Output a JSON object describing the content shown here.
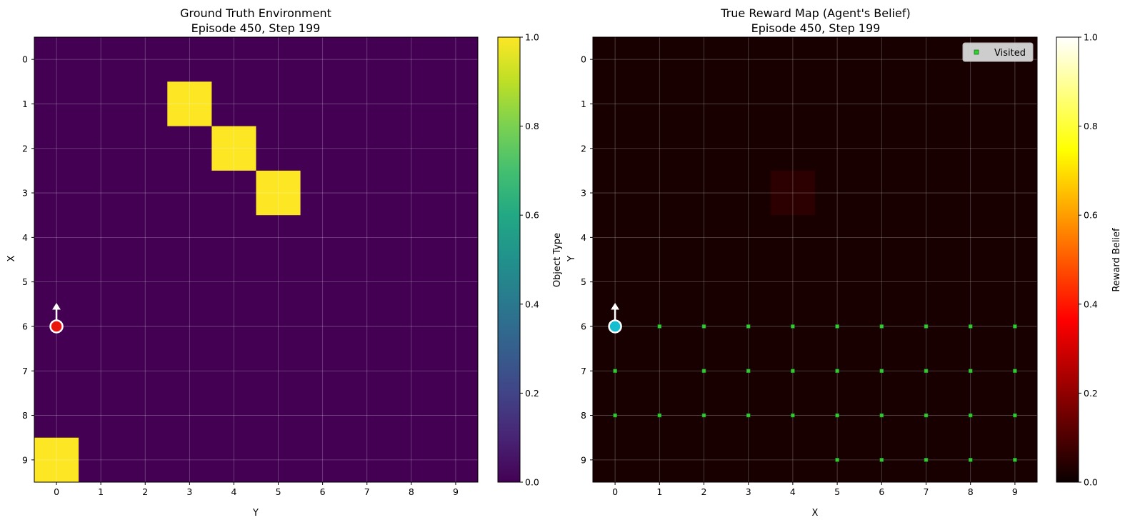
{
  "chart_data": [
    {
      "type": "heatmap",
      "title": "Ground Truth Environment",
      "subtitle": "Episode 450, Step 199",
      "xlabel": "Y",
      "ylabel": "X",
      "x_ticks": [
        "0",
        "1",
        "2",
        "3",
        "4",
        "5",
        "6",
        "7",
        "8",
        "9"
      ],
      "y_ticks": [
        "0",
        "1",
        "2",
        "3",
        "4",
        "5",
        "6",
        "7",
        "8",
        "9"
      ],
      "grid": true,
      "colormap": "viridis",
      "colorbar": {
        "label": "Object Type",
        "range": [
          0,
          1
        ],
        "ticks": [
          "0.0",
          "0.2",
          "0.4",
          "0.6",
          "0.8",
          "1.0"
        ]
      },
      "cells": [
        {
          "col": 3,
          "row": 1,
          "value": 1.0
        },
        {
          "col": 4,
          "row": 2,
          "value": 1.0
        },
        {
          "col": 5,
          "row": 3,
          "value": 1.0
        },
        {
          "col": 0,
          "row": 9,
          "value": 1.0
        }
      ],
      "background_value": 0.0,
      "agent": {
        "col": 0,
        "row": 6,
        "color": "#e8180f",
        "heading": "up"
      }
    },
    {
      "type": "heatmap",
      "title": "True Reward Map (Agent's Belief)",
      "subtitle": "Episode 450, Step 199",
      "xlabel": "X",
      "ylabel": "Y",
      "x_ticks": [
        "0",
        "1",
        "2",
        "3",
        "4",
        "5",
        "6",
        "7",
        "8",
        "9"
      ],
      "y_ticks": [
        "0",
        "1",
        "2",
        "3",
        "4",
        "5",
        "6",
        "7",
        "8",
        "9"
      ],
      "grid": true,
      "colormap": "hot",
      "colorbar": {
        "label": "Reward Belief",
        "range": [
          0,
          1
        ],
        "ticks": [
          "0.0",
          "0.2",
          "0.4",
          "0.6",
          "0.8",
          "1.0"
        ]
      },
      "background_value": 0.02,
      "cells": [
        {
          "col": 4,
          "row": 3,
          "value": 0.05
        }
      ],
      "legend": {
        "label": "Visited",
        "position": "top-right",
        "marker_color": "#33cc33"
      },
      "visited": [
        [
          1,
          6
        ],
        [
          2,
          6
        ],
        [
          3,
          6
        ],
        [
          4,
          6
        ],
        [
          5,
          6
        ],
        [
          6,
          6
        ],
        [
          7,
          6
        ],
        [
          8,
          6
        ],
        [
          9,
          6
        ],
        [
          0,
          7
        ],
        [
          2,
          7
        ],
        [
          3,
          7
        ],
        [
          4,
          7
        ],
        [
          5,
          7
        ],
        [
          6,
          7
        ],
        [
          7,
          7
        ],
        [
          8,
          7
        ],
        [
          9,
          7
        ],
        [
          0,
          8
        ],
        [
          1,
          8
        ],
        [
          2,
          8
        ],
        [
          3,
          8
        ],
        [
          4,
          8
        ],
        [
          5,
          8
        ],
        [
          6,
          8
        ],
        [
          7,
          8
        ],
        [
          8,
          8
        ],
        [
          9,
          8
        ],
        [
          5,
          9
        ],
        [
          6,
          9
        ],
        [
          7,
          9
        ],
        [
          8,
          9
        ],
        [
          9,
          9
        ]
      ],
      "agent": {
        "col": 0,
        "row": 6,
        "color": "#17becf",
        "heading": "up"
      }
    }
  ]
}
